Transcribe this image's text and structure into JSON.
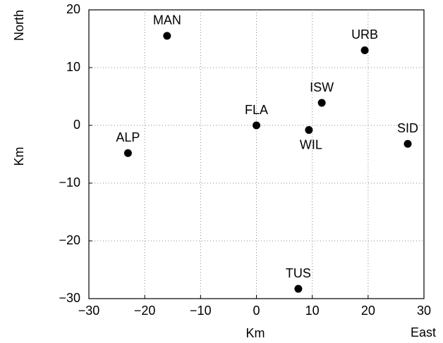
{
  "chart_data": {
    "type": "scatter",
    "x_label": "Km",
    "y_label": "Km",
    "x_direction_label": "East",
    "y_direction_label": "North",
    "point_labels": [
      "MAN",
      "URB",
      "ISW",
      "FLA",
      "WIL",
      "SID",
      "ALP",
      "TUS"
    ],
    "x": [
      -16,
      19.4,
      11.7,
      0,
      9.4,
      27.1,
      -23,
      7.5
    ],
    "values": [
      15.5,
      13,
      3.9,
      0,
      -0.8,
      -3.2,
      -4.8,
      -28.3
    ],
    "color": "#000000",
    "xlim": [
      -30,
      30
    ],
    "xticks": [
      {
        "value": -30,
        "label": "−30"
      },
      {
        "value": -20,
        "label": "−20"
      },
      {
        "value": -10,
        "label": "−10"
      },
      0,
      10,
      20,
      30
    ],
    "ylim": [
      -30,
      20
    ],
    "yticks": [
      {
        "value": -30,
        "label": "−30"
      },
      {
        "value": -20,
        "label": "−20"
      },
      {
        "value": -10,
        "label": "−10"
      },
      0,
      10,
      20
    ],
    "grid": true
  }
}
